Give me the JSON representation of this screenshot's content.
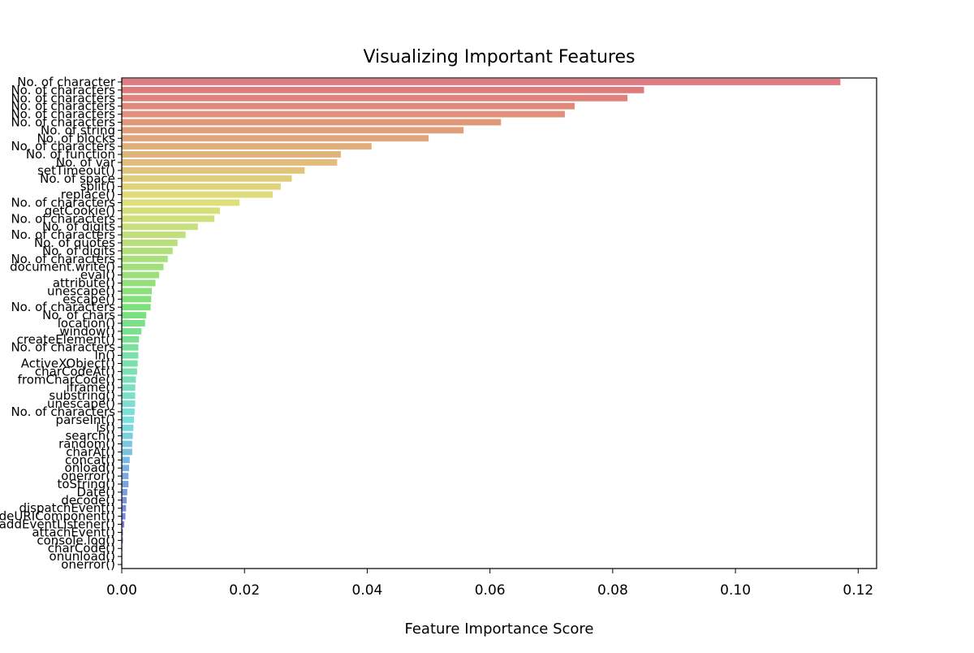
{
  "chart_data": {
    "type": "bar",
    "orientation": "horizontal",
    "title": "Visualizing Important Features",
    "xlabel": "Feature Importance Score",
    "ylabel": "",
    "xlim": [
      0,
      0.123
    ],
    "xticks": [
      "0.00",
      "0.02",
      "0.04",
      "0.06",
      "0.08",
      "0.10",
      "0.12"
    ],
    "grid": false,
    "legend": "none",
    "categories": [
      "No. of character",
      "No. of characters",
      "No. of characters",
      "No. of characters",
      "No. of characters",
      "No. of characters",
      "No. of string",
      "No. of blocks",
      "No. of characters",
      "No. of function",
      "No. of var",
      "setTimeout()",
      "No. of space",
      "split()",
      "replace()",
      "No. of characters",
      "getCookie()",
      "No. of characters",
      "No. of digits",
      "No. of characters",
      "No. of quotes",
      "No. of digits",
      "No. of characters",
      "document.write()",
      "eval()",
      "attribute()",
      "unescape()",
      "escape()",
      "No. of characters",
      "No. of chars",
      "location()",
      "window()",
      "createElement()",
      "No. of characters",
      "ln()",
      "ActiveXObject()",
      "charCodeAt()",
      "fromCharCode()",
      "iframe()",
      "substring()",
      "unescape()",
      "No. of characters",
      "parseInt()",
      "ls()",
      "search()",
      "random()",
      "charAt()",
      "concat()",
      "onload()",
      "onerror()",
      "toString()",
      "Date()",
      "decode()",
      "dispatchEvent()",
      "encodeURIComponent()",
      "addEventListener()",
      "attachEvent()",
      "console.log()",
      "charCode()",
      "onunload()",
      "onerror()"
    ],
    "values": [
      0.1171,
      0.0851,
      0.0824,
      0.0738,
      0.0722,
      0.0618,
      0.0557,
      0.05,
      0.0407,
      0.0357,
      0.0351,
      0.0298,
      0.0277,
      0.0259,
      0.0246,
      0.0192,
      0.016,
      0.0151,
      0.0124,
      0.0104,
      0.0091,
      0.0083,
      0.0075,
      0.0068,
      0.0061,
      0.0055,
      0.0049,
      0.0048,
      0.0047,
      0.004,
      0.0038,
      0.0032,
      0.0028,
      0.0027,
      0.0027,
      0.0026,
      0.0025,
      0.0023,
      0.0022,
      0.0022,
      0.0022,
      0.0021,
      0.002,
      0.0019,
      0.0018,
      0.0017,
      0.0017,
      0.0013,
      0.0012,
      0.0011,
      0.0011,
      0.0009,
      0.0008,
      0.0007,
      0.0006,
      0.0004,
      0.0002,
      0.0002,
      0.0001,
      0.0001,
      0.0001
    ],
    "palette": {
      "start_hue_deg": 355,
      "lightness_pct": 68,
      "saturation_pct": 62
    }
  }
}
